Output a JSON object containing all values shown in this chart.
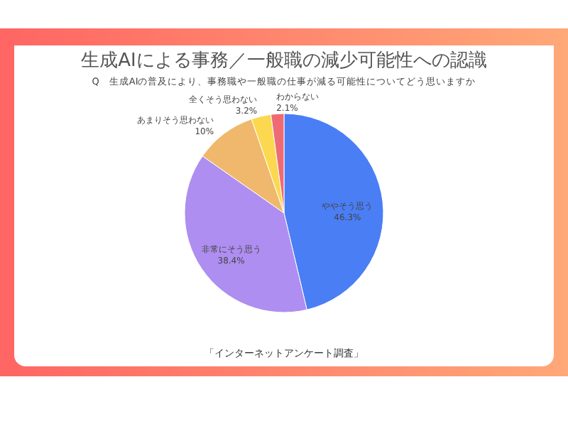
{
  "chart_data": {
    "type": "pie",
    "title": "生成AIによる事務／一般職の減少可能性への認識",
    "subtitle": "Q　生成AIの普及により、事務職や一般職の仕事が減る可能性についてどう思いますか",
    "categories": [
      "ややそう思う",
      "非常にそう思う",
      "あまりそう思わない",
      "全くそう思わない",
      "わからない"
    ],
    "values": [
      46.3,
      38.4,
      10,
      3.2,
      2.1
    ],
    "colors": [
      "#4a7ef5",
      "#ae8ef0",
      "#f0b86c",
      "#fbd84f",
      "#ee6b74"
    ],
    "value_labels": [
      "46.3%",
      "38.4%",
      "10%",
      "3.2%",
      "2.1%"
    ],
    "annotations": [
      "「インターネットアンケート調査」"
    ],
    "legend": false
  }
}
